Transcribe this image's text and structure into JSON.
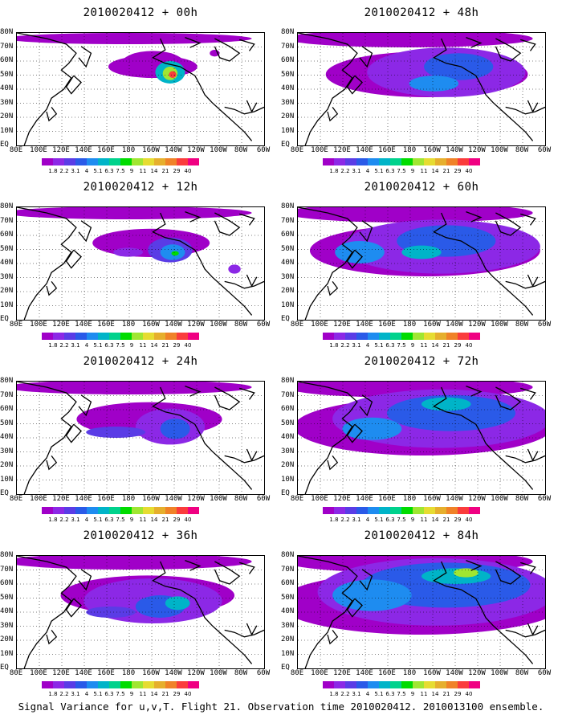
{
  "caption": "Signal Variance for u,v,T. Flight 21. Observation time 2010020412. 2010013100 ensemble.",
  "lat_labels": [
    "80N",
    "70N",
    "60N",
    "50N",
    "40N",
    "30N",
    "20N",
    "10N",
    "EQ"
  ],
  "lon_labels": [
    "80E",
    "100E",
    "120E",
    "140E",
    "160E",
    "180",
    "160W",
    "140W",
    "120W",
    "100W",
    "80W",
    "60W"
  ],
  "colorbar": {
    "labels": [
      "1.8",
      "2.2",
      "3.1",
      "4",
      "5.1",
      "6.3",
      "7.5",
      "9",
      "11",
      "14",
      "21",
      "29",
      "40"
    ],
    "colors": [
      "#a000c8",
      "#8c28e6",
      "#5a3ce6",
      "#2a5ae8",
      "#1e8cf0",
      "#00b4c8",
      "#00d28c",
      "#00dc00",
      "#a0e632",
      "#e6dc32",
      "#e6af2d",
      "#f08228",
      "#fa3c3c",
      "#f00082"
    ]
  },
  "panels": [
    {
      "title": "2010020412 + 00h",
      "forecast_hour": 0
    },
    {
      "title": "2010020412 + 48h",
      "forecast_hour": 48
    },
    {
      "title": "2010020412 + 12h",
      "forecast_hour": 12
    },
    {
      "title": "2010020412 + 60h",
      "forecast_hour": 60
    },
    {
      "title": "2010020412 + 24h",
      "forecast_hour": 24
    },
    {
      "title": "2010020412 + 72h",
      "forecast_hour": 72
    },
    {
      "title": "2010020412 + 36h",
      "forecast_hour": 36
    },
    {
      "title": "2010020412 + 84h",
      "forecast_hour": 84
    }
  ],
  "map_extent": {
    "lon_min": "80E",
    "lon_max": "60W",
    "lat_min": "EQ",
    "lat_max": "80N"
  },
  "colors": {
    "land_outline": "#000000",
    "grid": "#000000",
    "background": "#ffffff"
  }
}
